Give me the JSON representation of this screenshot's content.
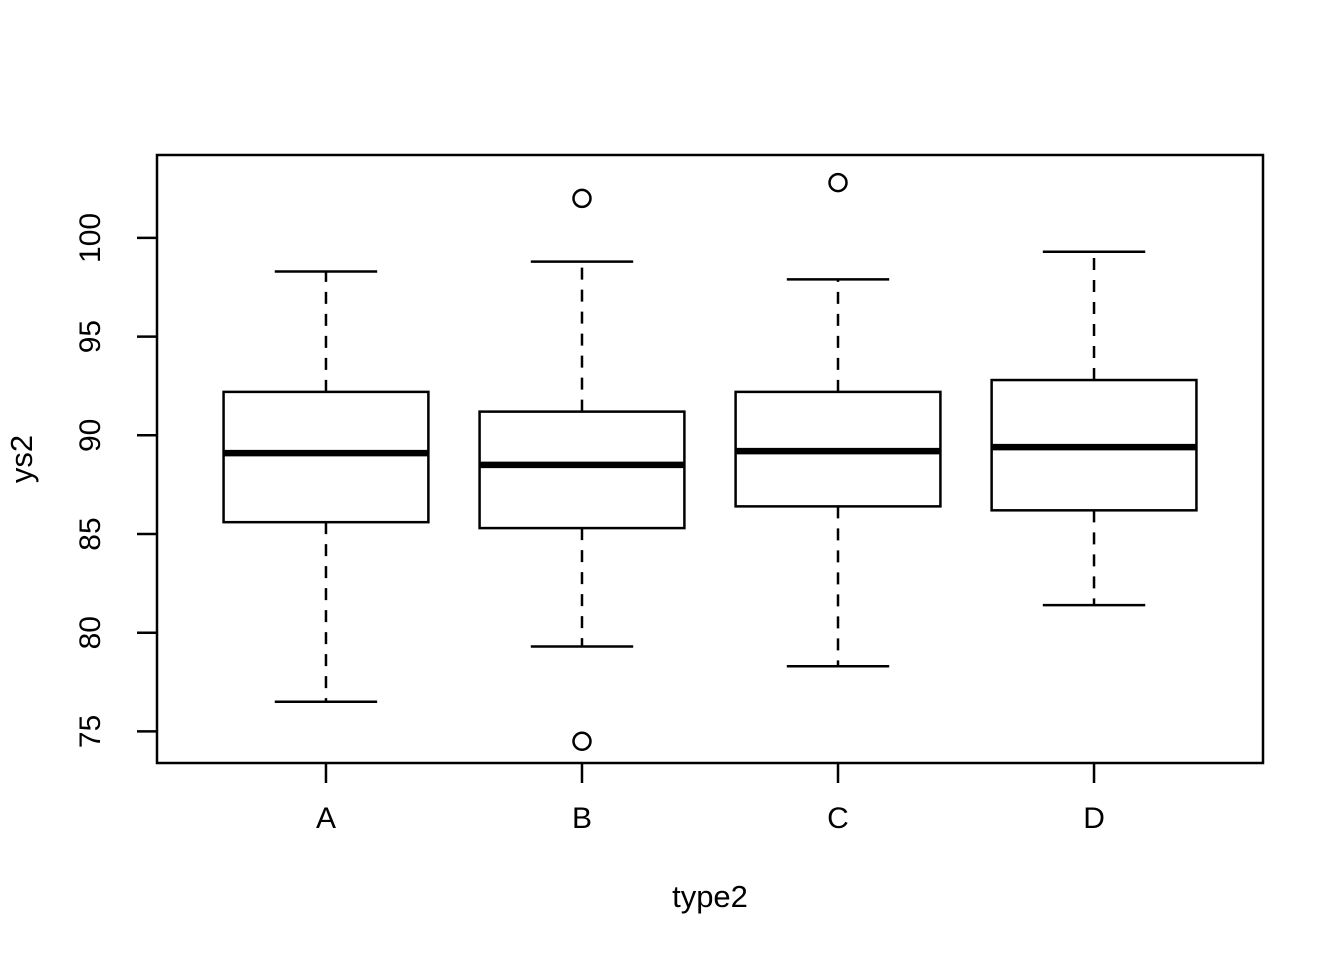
{
  "figure": {
    "background_color": "#ffffff",
    "line_color": "#000000"
  },
  "chart_data": {
    "type": "boxplot",
    "title": "",
    "xlabel": "type2",
    "ylabel": "ys2",
    "categories": [
      "A",
      "B",
      "C",
      "D"
    ],
    "yticks": [
      75,
      80,
      85,
      90,
      95,
      100
    ],
    "ylim": [
      73.4,
      104.2
    ],
    "grid": false,
    "legend": "none",
    "series": [
      {
        "name": "A",
        "lower_whisker": 76.5,
        "q1": 85.6,
        "median": 89.1,
        "q3": 92.2,
        "upper_whisker": 98.3,
        "outliers": []
      },
      {
        "name": "B",
        "lower_whisker": 79.3,
        "q1": 85.3,
        "median": 88.5,
        "q3": 91.2,
        "upper_whisker": 98.8,
        "outliers": [
          74.5,
          102.0
        ]
      },
      {
        "name": "C",
        "lower_whisker": 78.3,
        "q1": 86.4,
        "median": 89.2,
        "q3": 92.2,
        "upper_whisker": 97.9,
        "outliers": [
          102.8
        ]
      },
      {
        "name": "D",
        "lower_whisker": 81.4,
        "q1": 86.2,
        "median": 89.4,
        "q3": 92.8,
        "upper_whisker": 99.3,
        "outliers": []
      }
    ]
  }
}
